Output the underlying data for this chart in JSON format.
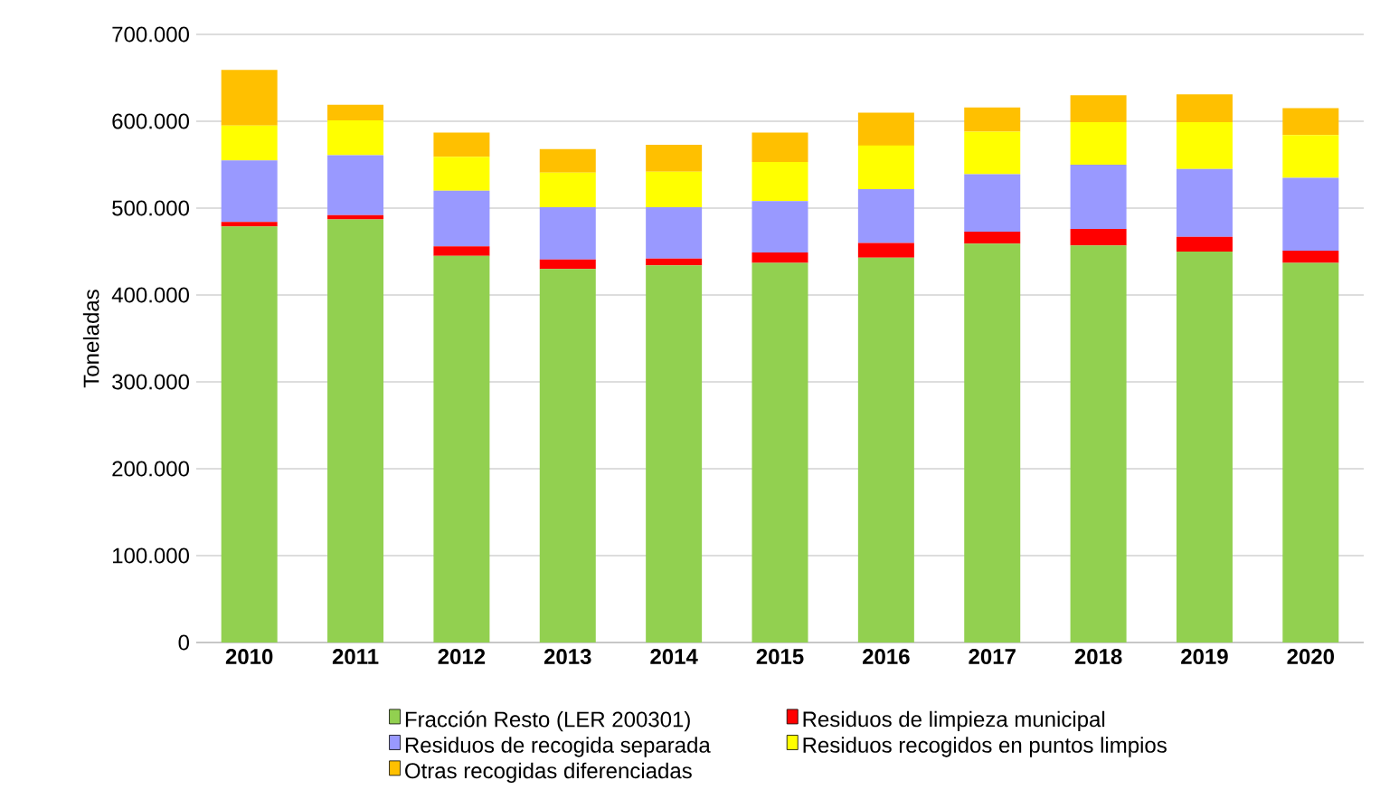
{
  "chart_data": {
    "type": "bar",
    "stacked": true,
    "ylabel": "Toneladas",
    "categories": [
      "2010",
      "2011",
      "2012",
      "2013",
      "2014",
      "2015",
      "2016",
      "2017",
      "2018",
      "2019",
      "2020"
    ],
    "ylim": [
      0,
      700000
    ],
    "yticks": [
      {
        "value": 0,
        "label": "0"
      },
      {
        "value": 100000,
        "label": "100.000"
      },
      {
        "value": 200000,
        "label": "200.000"
      },
      {
        "value": 300000,
        "label": "300.000"
      },
      {
        "value": 400000,
        "label": "400.000"
      },
      {
        "value": 500000,
        "label": "500.000"
      },
      {
        "value": 600000,
        "label": "600.000"
      },
      {
        "value": 700000,
        "label": "700.000"
      }
    ],
    "grid": "y",
    "legend": "bottom",
    "series": [
      {
        "name": "Fracción Resto (LER 200301)",
        "color": "#92d050",
        "values": [
          479000,
          487000,
          445000,
          430000,
          434000,
          437000,
          443000,
          459000,
          457000,
          450000,
          437000
        ]
      },
      {
        "name": "Residuos de limpieza municipal",
        "color": "#ff0000",
        "values": [
          5000,
          5000,
          11000,
          11000,
          8000,
          12000,
          17000,
          14000,
          19000,
          17000,
          14000
        ]
      },
      {
        "name": "Residuos de recogida separada",
        "color": "#9999ff",
        "values": [
          71000,
          69000,
          64000,
          60000,
          59000,
          59000,
          62000,
          66000,
          74000,
          78000,
          84000
        ]
      },
      {
        "name": "Residuos recogidos en puntos limpios",
        "color": "#ffff00",
        "values": [
          40000,
          40000,
          39000,
          40000,
          41000,
          45000,
          50000,
          49000,
          49000,
          54000,
          49000
        ]
      },
      {
        "name": "Otras recogidas diferenciadas",
        "color": "#ffc000",
        "values": [
          64000,
          18000,
          28000,
          27000,
          31000,
          34000,
          38000,
          28000,
          31000,
          32000,
          31000
        ]
      }
    ]
  }
}
